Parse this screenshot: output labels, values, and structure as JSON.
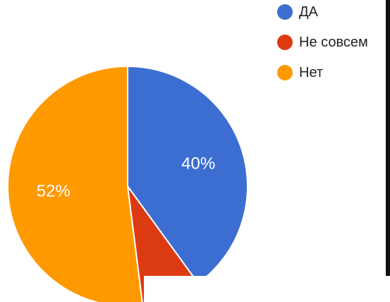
{
  "chart_data": {
    "type": "pie",
    "slices": [
      {
        "name": "ДА",
        "value": 40,
        "label": "40%",
        "color": "#3c6ed2"
      },
      {
        "name": "Не совсем",
        "value": 8,
        "label": "",
        "color": "#dc3b12"
      },
      {
        "name": "Нет",
        "value": 52,
        "label": "52%",
        "color": "#ff9900"
      }
    ],
    "legend_position": "top-right",
    "start_angle_deg": 0,
    "direction": "clockwise"
  }
}
